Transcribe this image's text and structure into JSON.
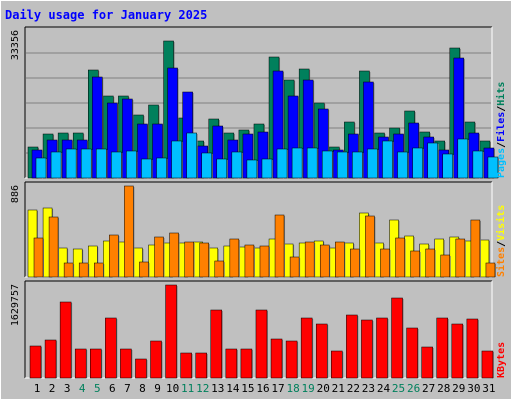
{
  "chart_data": {
    "title": "Daily usage for January 2025",
    "type": "bar",
    "days": [
      "1",
      "2",
      "3",
      "4",
      "5",
      "6",
      "7",
      "8",
      "9",
      "10",
      "11",
      "12",
      "13",
      "14",
      "15",
      "16",
      "17",
      "18",
      "19",
      "20",
      "21",
      "22",
      "23",
      "24",
      "25",
      "26",
      "27",
      "28",
      "29",
      "30",
      "31"
    ],
    "weekend_days": [
      "4",
      "5",
      "11",
      "12",
      "18",
      "19",
      "25",
      "26"
    ],
    "colors": {
      "background": "#c0c0c0",
      "title": "#0000ff",
      "hits": "#00805c",
      "files": "#0000ff",
      "pages": "#00c0ff",
      "visits": "#ffff00",
      "sites": "#ff8000",
      "kbytes": "#ff0000",
      "weekend_label": "#00805c"
    },
    "panels": [
      {
        "id": "hits-files-pages",
        "ymax_label": "33356",
        "ymax": 33356,
        "legend": [
          {
            "label": "Pages",
            "color": "#00c0ff"
          },
          {
            "label": "/",
            "color": "#000000"
          },
          {
            "label": "Files",
            "color": "#0000ff"
          },
          {
            "label": "/",
            "color": "#000000"
          },
          {
            "label": "Hits",
            "color": "#00805c"
          }
        ],
        "series": [
          {
            "name": "Hits",
            "color": "#00805c",
            "values": [
              7100,
              10000,
              10200,
              10300,
              24600,
              18700,
              18700,
              14300,
              16600,
              31100,
              13700,
              8300,
              13500,
              10300,
              11000,
              12200,
              27500,
              22300,
              24800,
              17000,
              7000,
              12600,
              24300,
              10300,
              11300,
              15200,
              10400,
              8500,
              29400,
              12700,
              8500
            ]
          },
          {
            "name": "Files",
            "color": "#0000ff",
            "values": [
              6400,
              8600,
              8600,
              8600,
              22900,
              17100,
              18000,
              12300,
              12300,
              25000,
              19600,
              7200,
              11900,
              8700,
              9900,
              10400,
              24200,
              18500,
              22300,
              15700,
              6300,
              10000,
              21800,
              9400,
              9900,
              12500,
              9300,
              6400,
              27200,
              10100,
              6800
            ]
          },
          {
            "name": "Pages",
            "color": "#00c0ff",
            "values": [
              4600,
              5900,
              6600,
              6500,
              6600,
              6000,
              6100,
              4300,
              4600,
              8300,
              10200,
              5600,
              4400,
              6000,
              4100,
              4400,
              6600,
              6700,
              6800,
              6200,
              5900,
              5900,
              6500,
              8300,
              6000,
              6700,
              8000,
              5500,
              8800,
              6200,
              4800
            ]
          }
        ]
      },
      {
        "id": "visits-sites",
        "ymax_label": "886",
        "ymax": 886,
        "legend": [
          {
            "label": "Sites",
            "color": "#ff8000"
          },
          {
            "label": "/",
            "color": "#000000"
          },
          {
            "label": "Visits",
            "color": "#ffff00"
          }
        ],
        "series": [
          {
            "name": "Visits",
            "color": "#ffff00",
            "values": [
              651,
              671,
              280,
              275,
              300,
              349,
              341,
              280,
              311,
              330,
              330,
              342,
              279,
              300,
              291,
              286,
              372,
              326,
              333,
              352,
              286,
              329,
              619,
              330,
              559,
              403,
              322,
              368,
              389,
              350,
              358
            ]
          },
          {
            "name": "Sites",
            "color": "#ff8000",
            "values": [
              382,
              585,
              135,
              135,
              135,
              413,
              886,
              142,
              388,
              432,
              337,
              332,
              152,
              370,
              314,
              302,
              603,
              190,
              342,
              315,
              345,
              269,
              597,
              275,
              380,
              251,
              270,
              216,
              368,
              551,
              135
            ]
          }
        ]
      },
      {
        "id": "kbytes",
        "ymax_label": "1629757",
        "ymax": 1629757,
        "legend": [
          {
            "label": "KBytes",
            "color": "#ff0000"
          }
        ],
        "series": [
          {
            "name": "KBytes",
            "color": "#ff0000",
            "values": [
              560000,
              660000,
              1340000,
              500000,
              500000,
              1060000,
              500000,
              340000,
              640000,
              1630000,
              430000,
              430000,
              1200000,
              510000,
              500000,
              1190000,
              690000,
              650000,
              1060000,
              950000,
              480000,
              1110000,
              1010000,
              1060000,
              1400000,
              880000,
              550000,
              1050000,
              950000,
              1040000,
              470000
            ]
          }
        ]
      }
    ]
  }
}
